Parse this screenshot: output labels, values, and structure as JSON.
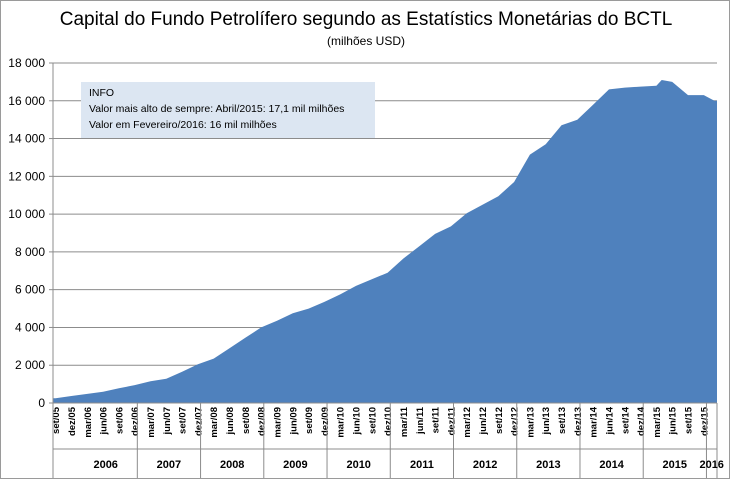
{
  "chart_data": {
    "type": "area",
    "title": "Capital do Fundo Petrolífero segundo as Estatístics Monetárias do BCTL",
    "subtitle": "(milhões USD)",
    "ylim": [
      0,
      18000
    ],
    "yticks": [
      0,
      2000,
      4000,
      6000,
      8000,
      10000,
      12000,
      14000,
      16000,
      18000
    ],
    "ytick_labels": [
      "0",
      "2 000",
      "4 000",
      "6 000",
      "8 000",
      "10 000",
      "12 000",
      "14 000",
      "16 000",
      "18 000"
    ],
    "grid": "horizontal",
    "color": "#4f81bd",
    "x_start": "2005-09",
    "x_end": "2016-02",
    "month_tick_labels": [
      {
        "month": "2005-09",
        "label": "set/05"
      },
      {
        "month": "2005-12",
        "label": "dez/05"
      },
      {
        "month": "2006-03",
        "label": "mar/06"
      },
      {
        "month": "2006-06",
        "label": "jun/06"
      },
      {
        "month": "2006-09",
        "label": "set/06"
      },
      {
        "month": "2006-12",
        "label": "dez/06"
      },
      {
        "month": "2007-03",
        "label": "mar/07"
      },
      {
        "month": "2007-06",
        "label": "jun/07"
      },
      {
        "month": "2007-09",
        "label": "set/07"
      },
      {
        "month": "2007-12",
        "label": "dez/07"
      },
      {
        "month": "2008-03",
        "label": "mar/08"
      },
      {
        "month": "2008-06",
        "label": "jun/08"
      },
      {
        "month": "2008-09",
        "label": "set/08"
      },
      {
        "month": "2008-12",
        "label": "dez/08"
      },
      {
        "month": "2009-03",
        "label": "mar/09"
      },
      {
        "month": "2009-06",
        "label": "jun/09"
      },
      {
        "month": "2009-09",
        "label": "set/09"
      },
      {
        "month": "2009-12",
        "label": "dez/09"
      },
      {
        "month": "2010-03",
        "label": "mar/10"
      },
      {
        "month": "2010-06",
        "label": "jun/10"
      },
      {
        "month": "2010-09",
        "label": "set/10"
      },
      {
        "month": "2010-12",
        "label": "dez/10"
      },
      {
        "month": "2011-03",
        "label": "mar/11"
      },
      {
        "month": "2011-06",
        "label": "jun/11"
      },
      {
        "month": "2011-09",
        "label": "set/11"
      },
      {
        "month": "2011-12",
        "label": "dez/11"
      },
      {
        "month": "2012-03",
        "label": "mar/12"
      },
      {
        "month": "2012-06",
        "label": "jun/12"
      },
      {
        "month": "2012-09",
        "label": "set/12"
      },
      {
        "month": "2012-12",
        "label": "dez/12"
      },
      {
        "month": "2013-03",
        "label": "mar/13"
      },
      {
        "month": "2013-06",
        "label": "jun/13"
      },
      {
        "month": "2013-09",
        "label": "set/13"
      },
      {
        "month": "2013-12",
        "label": "dez/13"
      },
      {
        "month": "2014-03",
        "label": "mar/14"
      },
      {
        "month": "2014-06",
        "label": "jun/14"
      },
      {
        "month": "2014-09",
        "label": "set/14"
      },
      {
        "month": "2014-12",
        "label": "dez/14"
      },
      {
        "month": "2015-03",
        "label": "mar/15"
      },
      {
        "month": "2015-06",
        "label": "jun/15"
      },
      {
        "month": "2015-09",
        "label": "set/15"
      },
      {
        "month": "2015-12",
        "label": "dez/15"
      }
    ],
    "year_groups": [
      {
        "label": "2006",
        "start": "2006-01",
        "end": "2006-12"
      },
      {
        "label": "2007",
        "start": "2007-01",
        "end": "2007-12"
      },
      {
        "label": "2008",
        "start": "2008-01",
        "end": "2008-12"
      },
      {
        "label": "2009",
        "start": "2009-01",
        "end": "2009-12"
      },
      {
        "label": "2010",
        "start": "2010-01",
        "end": "2010-12"
      },
      {
        "label": "2011",
        "start": "2011-01",
        "end": "2011-12"
      },
      {
        "label": "2012",
        "start": "2012-01",
        "end": "2012-12"
      },
      {
        "label": "2013",
        "start": "2013-01",
        "end": "2013-12"
      },
      {
        "label": "2014",
        "start": "2014-01",
        "end": "2014-12"
      },
      {
        "label": "2015",
        "start": "2015-01",
        "end": "2015-12"
      },
      {
        "label": "2016",
        "start": "2016-01",
        "end": "2016-02"
      }
    ],
    "series": [
      {
        "points": [
          [
            "2005-09",
            250
          ],
          [
            "2005-12",
            370
          ],
          [
            "2006-03",
            480
          ],
          [
            "2006-06",
            600
          ],
          [
            "2006-09",
            780
          ],
          [
            "2006-12",
            950
          ],
          [
            "2007-03",
            1150
          ],
          [
            "2007-06",
            1280
          ],
          [
            "2007-09",
            1650
          ],
          [
            "2007-12",
            2050
          ],
          [
            "2008-03",
            2350
          ],
          [
            "2008-06",
            2900
          ],
          [
            "2008-09",
            3450
          ],
          [
            "2008-12",
            4000
          ],
          [
            "2009-03",
            4350
          ],
          [
            "2009-06",
            4750
          ],
          [
            "2009-09",
            5000
          ],
          [
            "2009-12",
            5350
          ],
          [
            "2010-03",
            5750
          ],
          [
            "2010-06",
            6200
          ],
          [
            "2010-09",
            6550
          ],
          [
            "2010-12",
            6900
          ],
          [
            "2011-03",
            7650
          ],
          [
            "2011-06",
            8300
          ],
          [
            "2011-09",
            8950
          ],
          [
            "2011-12",
            9350
          ],
          [
            "2012-03",
            10050
          ],
          [
            "2012-06",
            10500
          ],
          [
            "2012-09",
            10950
          ],
          [
            "2012-12",
            11700
          ],
          [
            "2013-03",
            13150
          ],
          [
            "2013-06",
            13700
          ],
          [
            "2013-09",
            14700
          ],
          [
            "2013-12",
            15000
          ],
          [
            "2014-03",
            15800
          ],
          [
            "2014-06",
            16600
          ],
          [
            "2014-09",
            16700
          ],
          [
            "2014-12",
            16750
          ],
          [
            "2015-03",
            16800
          ],
          [
            "2015-04",
            17100
          ],
          [
            "2015-06",
            17000
          ],
          [
            "2015-09",
            16300
          ],
          [
            "2015-12",
            16300
          ],
          [
            "2016-02",
            16000
          ]
        ]
      }
    ],
    "annotation": {
      "heading": "INFO",
      "lines": [
        "Valor mais alto de sempre: Abril/2015:  17,1 mil milhões",
        "Valor  em Fevereiro/2016: 16 mil milhões"
      ],
      "background": "#dce6f2"
    }
  }
}
